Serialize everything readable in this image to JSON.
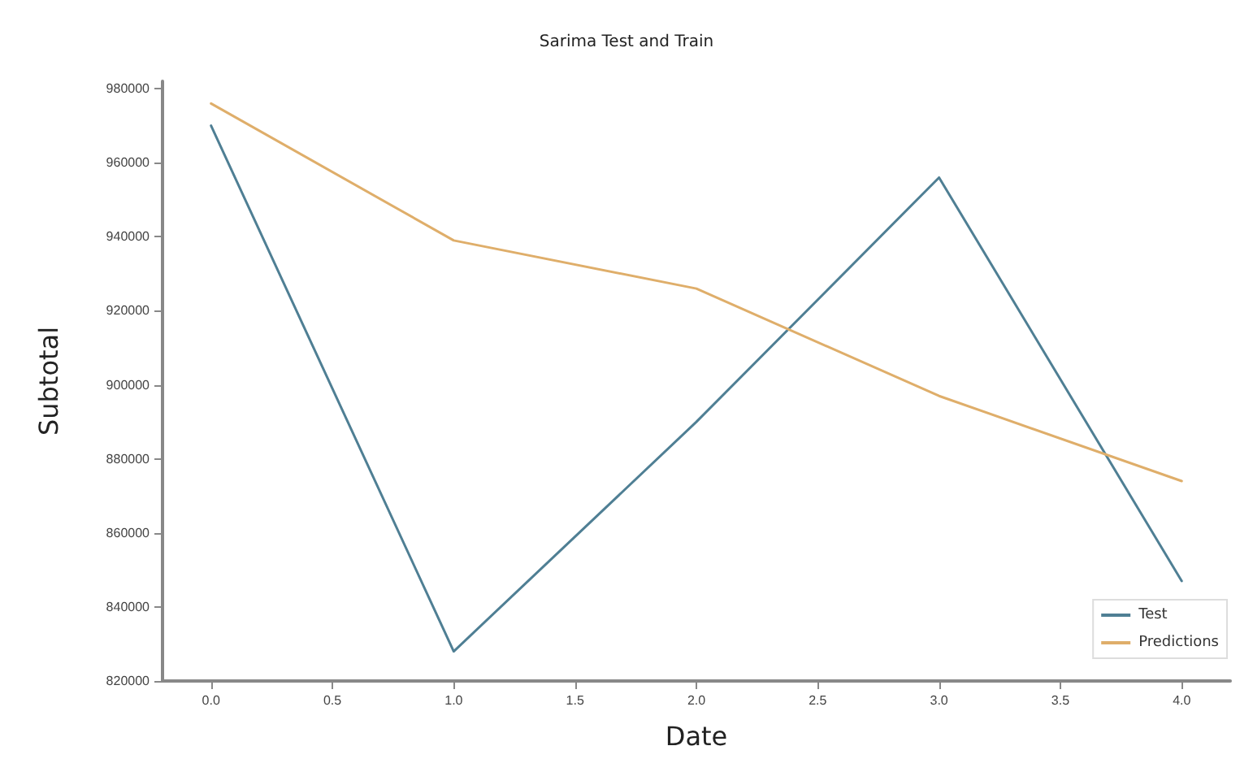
{
  "chart_data": {
    "type": "line",
    "title": "Sarima Test and Train",
    "xlabel": "Date",
    "ylabel": "Subtotal",
    "x": [
      0,
      1,
      2,
      3,
      4
    ],
    "series": [
      {
        "name": "Test",
        "color": "#4f7f94",
        "values": [
          970000,
          828000,
          890000,
          956000,
          847000
        ]
      },
      {
        "name": "Predictions",
        "color": "#dfae6a",
        "values": [
          976000,
          939000,
          926000,
          897000,
          874000
        ]
      }
    ],
    "xlim": [
      -0.2,
      4.2
    ],
    "xticks": [
      {
        "value": 0,
        "label": "0.0"
      },
      {
        "value": 0.5,
        "label": "0.5"
      },
      {
        "value": 1,
        "label": "1.0"
      },
      {
        "value": 1.5,
        "label": "1.5"
      },
      {
        "value": 2,
        "label": "2.0"
      },
      {
        "value": 2.5,
        "label": "2.5"
      },
      {
        "value": 3,
        "label": "3.0"
      },
      {
        "value": 3.5,
        "label": "3.5"
      },
      {
        "value": 4,
        "label": "4.0"
      }
    ],
    "ylim": [
      820000,
      982000
    ],
    "yticks": [
      820000,
      840000,
      860000,
      880000,
      900000,
      920000,
      940000,
      960000,
      980000
    ],
    "legend": "bottom right",
    "grid": false,
    "marker": "none",
    "line_style": "solid"
  }
}
